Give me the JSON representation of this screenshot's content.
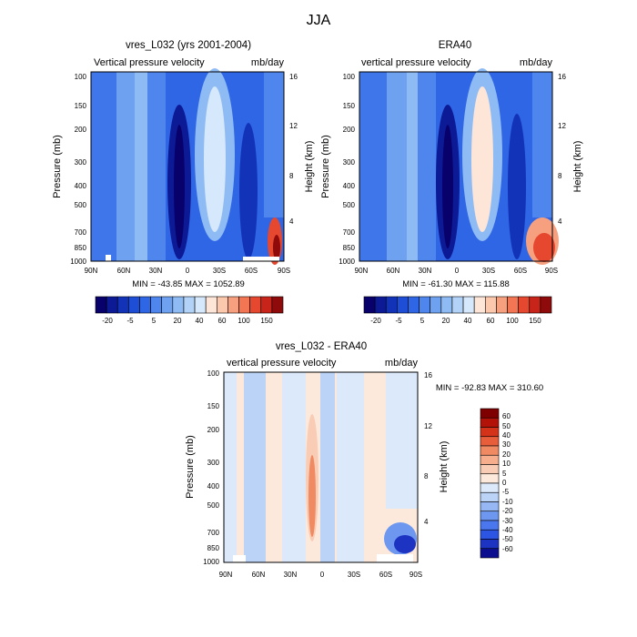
{
  "figure": {
    "title": "JJA"
  },
  "colors": {
    "blue_ramp": [
      "#08006b",
      "#0c1a95",
      "#1233b8",
      "#1f4ed6",
      "#2f66e6",
      "#4e86ee",
      "#6ea2f1",
      "#8fbbf4",
      "#b2d3f7",
      "#d6e8fb"
    ],
    "red_ramp": [
      "#fde5d8",
      "#fbc7ad",
      "#f7a07f",
      "#f27653",
      "#e6472f",
      "#c8241a",
      "#8f0a0a"
    ],
    "diff_ramp_neg": [
      "#0b0f8f",
      "#1d33c2",
      "#2d55e4",
      "#4a77ee",
      "#6e98f0",
      "#96b7f3",
      "#bbd3f7",
      "#dce9fb"
    ],
    "diff_ramp_pos": [
      "#fde9dc",
      "#f9cdb5",
      "#f6ae8c",
      "#f08a63",
      "#e85d3a",
      "#d53319",
      "#b21208",
      "#7f0000"
    ]
  },
  "chart_data": [
    {
      "type": "heatmap",
      "title": "vres_L032 (yrs 2001-2004)",
      "left_label": "Vertical pressure velocity",
      "right_label": "mb/day",
      "xlabel": "",
      "ylabel": "Pressure (mb)",
      "y2label": "Height (km)",
      "x_ticks": [
        "90N",
        "60N",
        "30N",
        "0",
        "30S",
        "60S",
        "90S"
      ],
      "y_ticks": [
        "100",
        "150",
        "200",
        "300",
        "400",
        "500",
        "700",
        "850",
        "1000"
      ],
      "y2_ticks": [
        "16",
        "12",
        "8",
        "4"
      ],
      "stats": "MIN = -43.85  MAX = 1052.89",
      "colorbar_labels": [
        "-20",
        "-5",
        "5",
        "20",
        "40",
        "60",
        "100",
        "150"
      ],
      "ylim": [
        100,
        1000
      ],
      "xlim": [
        "90N",
        "90S"
      ]
    },
    {
      "type": "heatmap",
      "title": "ERA40",
      "left_label": "vertical pressure velocity",
      "right_label": "mb/day",
      "xlabel": "",
      "ylabel": "Pressure (mb)",
      "y2label": "Height (km)",
      "x_ticks": [
        "90N",
        "60N",
        "30N",
        "0",
        "30S",
        "60S",
        "90S"
      ],
      "y_ticks": [
        "100",
        "150",
        "200",
        "300",
        "400",
        "500",
        "700",
        "850",
        "1000"
      ],
      "y2_ticks": [
        "16",
        "12",
        "8",
        "4"
      ],
      "stats": "MIN = -61.30  MAX = 115.88",
      "colorbar_labels": [
        "-20",
        "-5",
        "5",
        "20",
        "40",
        "60",
        "100",
        "150"
      ],
      "ylim": [
        100,
        1000
      ],
      "xlim": [
        "90N",
        "90S"
      ]
    },
    {
      "type": "heatmap",
      "title": "vres_L032 - ERA40",
      "left_label": "vertical pressure velocity",
      "right_label": "mb/day",
      "xlabel": "",
      "ylabel": "Pressure (mb)",
      "y2label": "Height (km)",
      "x_ticks": [
        "90N",
        "60N",
        "30N",
        "0",
        "30S",
        "60S",
        "90S"
      ],
      "y_ticks": [
        "100",
        "150",
        "200",
        "300",
        "400",
        "500",
        "700",
        "850",
        "1000"
      ],
      "y2_ticks": [
        "16",
        "12",
        "8",
        "4"
      ],
      "stats": "MIN = -92.83  MAX = 310.60",
      "colorbar_labels": [
        "60",
        "50",
        "40",
        "30",
        "20",
        "10",
        "5",
        "0",
        "-5",
        "-10",
        "-20",
        "-30",
        "-40",
        "-50",
        "-60"
      ],
      "ylim": [
        100,
        1000
      ],
      "xlim": [
        "90N",
        "90S"
      ]
    }
  ]
}
